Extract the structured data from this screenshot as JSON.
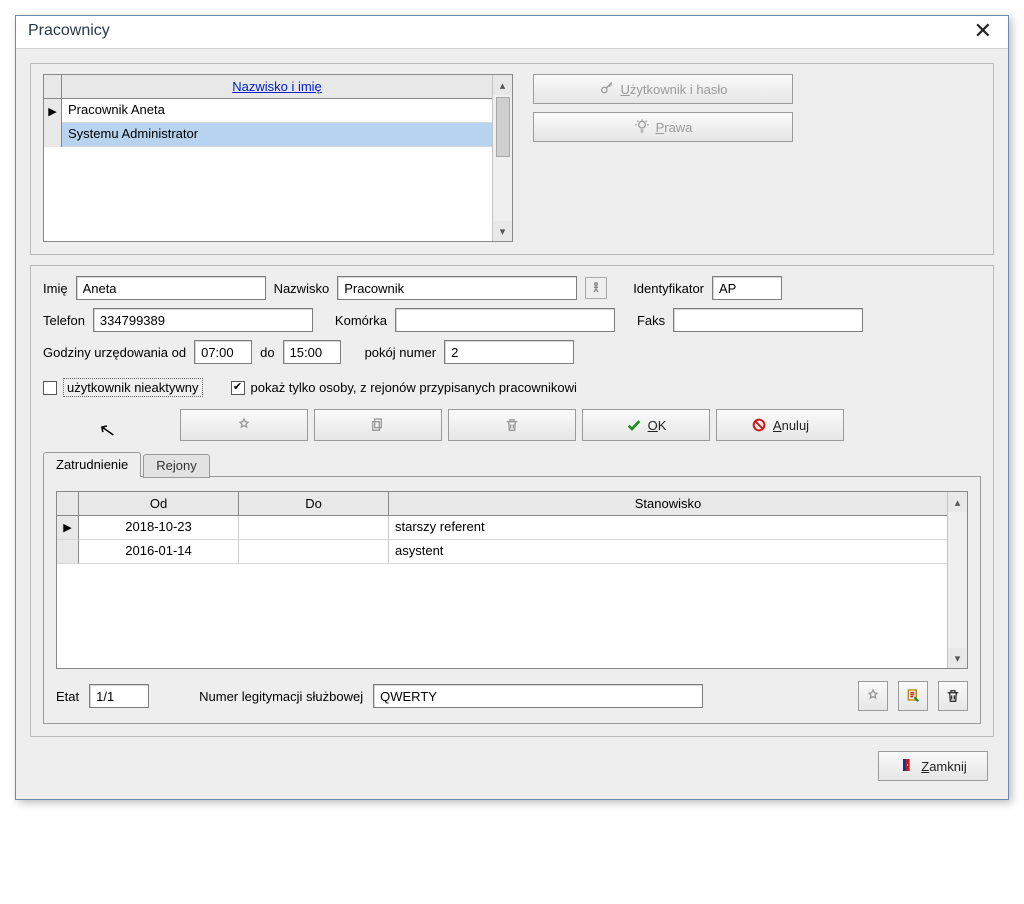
{
  "window": {
    "title": "Pracownicy"
  },
  "grid": {
    "header": "Nazwisko i imię",
    "rows": [
      {
        "name": "Pracownik Aneta",
        "current": true,
        "selected": false
      },
      {
        "name": "Systemu Administrator",
        "current": false,
        "selected": true
      }
    ]
  },
  "sideButtons": {
    "userPassword_pre": "U",
    "userPassword_rest": "żytkownik i hasło",
    "rights_pre": "P",
    "rights_rest": "rawa"
  },
  "form": {
    "imie_label": "Imię",
    "imie": "Aneta",
    "nazwisko_label": "Nazwisko",
    "nazwisko": "Pracownik",
    "identyfikator_label": "Identyfikator",
    "identyfikator": "AP",
    "telefon_label": "Telefon",
    "telefon": "334799389",
    "komorka_label": "Komórka",
    "komorka": "",
    "faks_label": "Faks",
    "faks": "",
    "godz_label": "Godziny urzędowania od",
    "godz_od": "07:00",
    "do_label": "do",
    "godz_do": "15:00",
    "pokoj_label": "pokój numer",
    "pokoj": "2",
    "chk_nieaktywny_label": "użytkownik nieaktywny",
    "chk_nieaktywny": false,
    "chk_rejony_label": "pokaż tylko osoby, z rejonów przypisanych pracownikowi",
    "chk_rejony": true
  },
  "toolbar": {
    "ok_pre": "O",
    "ok_rest": "K",
    "anuluj_pre": "A",
    "anuluj_rest": "nuluj"
  },
  "tabs": {
    "employment": "Zatrudnienie",
    "regions": "Rejony"
  },
  "jobs": {
    "col_od": "Od",
    "col_do": "Do",
    "col_st": "Stanowisko",
    "rows": [
      {
        "od": "2018-10-23",
        "do": "",
        "st": "starszy referent",
        "current": true
      },
      {
        "od": "2016-01-14",
        "do": "",
        "st": "asystent",
        "current": false
      }
    ]
  },
  "bottom": {
    "etat_label": "Etat",
    "etat": "1/1",
    "legit_label": "Numer legitymacji służbowej",
    "legit": "QWERTY"
  },
  "footer": {
    "close_pre": "Z",
    "close_rest": "amknij"
  },
  "colors": {
    "selection": "#b7d3f0",
    "link": "#0020c8",
    "panel_bg": "#eeeeee",
    "border": "#9a9a9a",
    "ok_green": "#1f8d1f",
    "cancel_red": "#cc1a1a"
  }
}
